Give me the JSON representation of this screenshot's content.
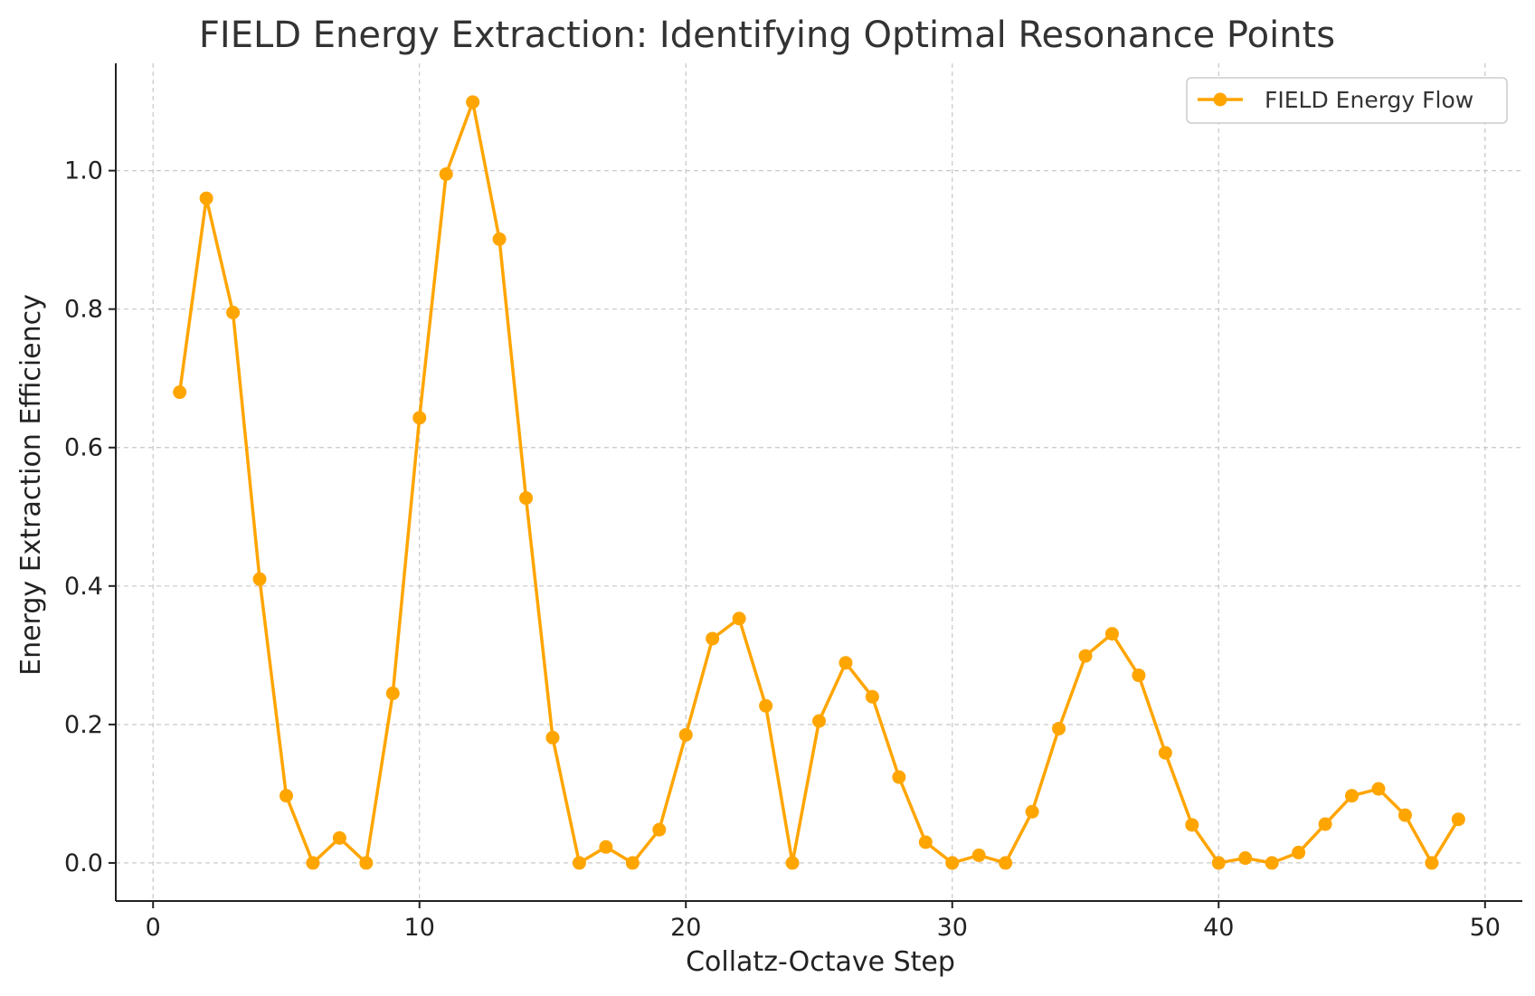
{
  "chart_data": {
    "type": "line",
    "title": "FIELD Energy Extraction: Identifying Optimal Resonance Points",
    "xlabel": "Collatz-Octave Step",
    "ylabel": "Energy Extraction Efficiency",
    "xlim": [
      -1.4,
      51.4
    ],
    "ylim": [
      -0.055,
      1.155
    ],
    "xticks": [
      0,
      10,
      20,
      30,
      40,
      50
    ],
    "yticks": [
      0.0,
      0.2,
      0.4,
      0.6,
      0.8,
      1.0
    ],
    "xtick_labels": [
      "0",
      "10",
      "20",
      "30",
      "40",
      "50"
    ],
    "ytick_labels": [
      "0.0",
      "0.2",
      "0.4",
      "0.6",
      "0.8",
      "1.0"
    ],
    "grid": true,
    "legend_position": "top-right",
    "series": [
      {
        "name": "FIELD Energy Flow",
        "color": "#FFA500",
        "marker": "circle",
        "x": [
          1,
          2,
          3,
          4,
          5,
          6,
          7,
          8,
          9,
          10,
          11,
          12,
          13,
          14,
          15,
          16,
          17,
          18,
          19,
          20,
          21,
          22,
          23,
          24,
          25,
          26,
          27,
          28,
          29,
          30,
          31,
          32,
          33,
          34,
          35,
          36,
          37,
          38,
          39,
          40,
          41,
          42,
          43,
          44,
          45,
          46,
          47,
          48,
          49
        ],
        "y": [
          0.68,
          0.96,
          0.795,
          0.41,
          0.097,
          0.0,
          0.036,
          0.0,
          0.245,
          0.643,
          0.995,
          1.099,
          0.901,
          0.527,
          0.181,
          0.0,
          0.023,
          0.0,
          0.048,
          0.185,
          0.324,
          0.353,
          0.227,
          0.0,
          0.205,
          0.289,
          0.24,
          0.124,
          0.03,
          0.0,
          0.011,
          0.0,
          0.074,
          0.194,
          0.299,
          0.331,
          0.271,
          0.159,
          0.055,
          0.0,
          0.007,
          0.0,
          0.015,
          0.056,
          0.097,
          0.107,
          0.069,
          0.0,
          0.063
        ]
      }
    ]
  }
}
